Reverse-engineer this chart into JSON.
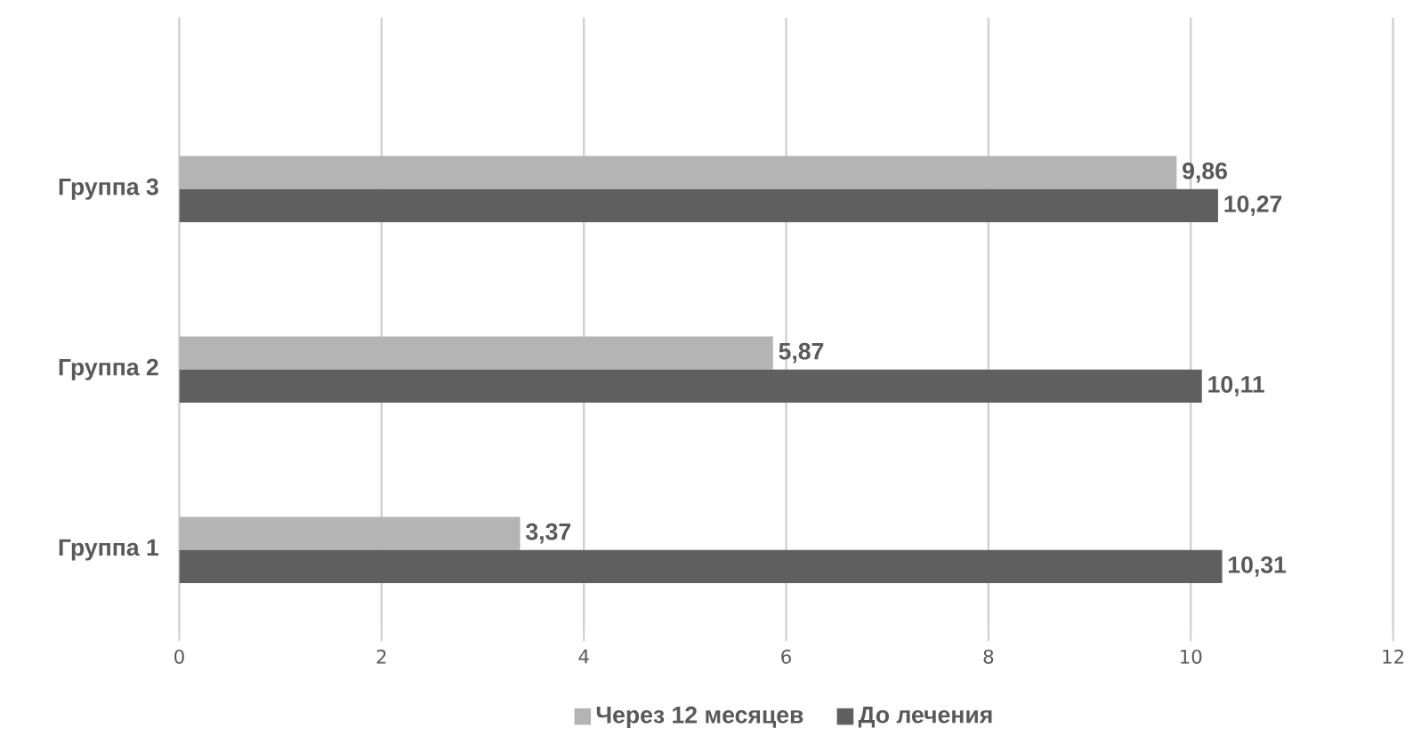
{
  "chart_data": {
    "type": "bar",
    "orientation": "horizontal",
    "categories": [
      "Группа 3",
      "Группа 2",
      "Группа 1"
    ],
    "series": [
      {
        "name": "Через 12 месяцев",
        "color": "#b4b4b4",
        "values": [
          9.86,
          5.87,
          3.37
        ],
        "value_labels": [
          "9,86",
          "5,87",
          "3,37"
        ]
      },
      {
        "name": "До лечения",
        "color": "#5f5f5f",
        "values": [
          10.27,
          10.11,
          10.31
        ],
        "value_labels": [
          "10,27",
          "10,11",
          "10,31"
        ]
      }
    ],
    "xlim": [
      0,
      12
    ],
    "xticks": [
      0,
      2,
      4,
      6,
      8,
      10,
      12
    ],
    "grid": "x",
    "legend": "bottom"
  }
}
